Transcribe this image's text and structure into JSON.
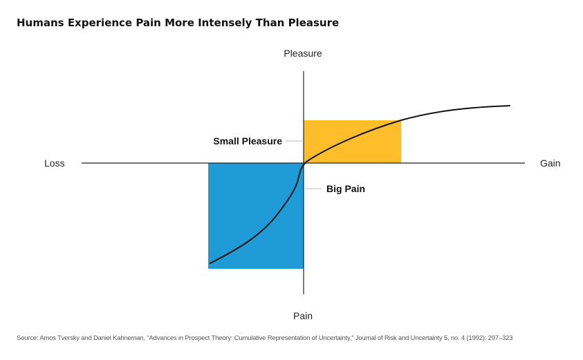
{
  "title": "Humans Experience Pain More Intensely Than Pleasure",
  "axes": {
    "top": "Pleasure",
    "bottom": "Pain",
    "left": "Loss",
    "right": "Gain"
  },
  "annotations": {
    "small_pleasure": "Small Pleasure",
    "big_pain": "Big Pain"
  },
  "colors": {
    "pleasure_box": "#FEBE2C",
    "pain_box": "#1F9BD7",
    "axis": "#222222",
    "curve": "#111111",
    "leader": "#bbbbbb"
  },
  "source": "Source: Amos Tversky and Daniel Kahneman, “Advances in Prospect Theory: Cumulative Representation of Uncertainty,” Journal of Risk and Uncertainty 5, no. 4 (1992): 297–323"
}
